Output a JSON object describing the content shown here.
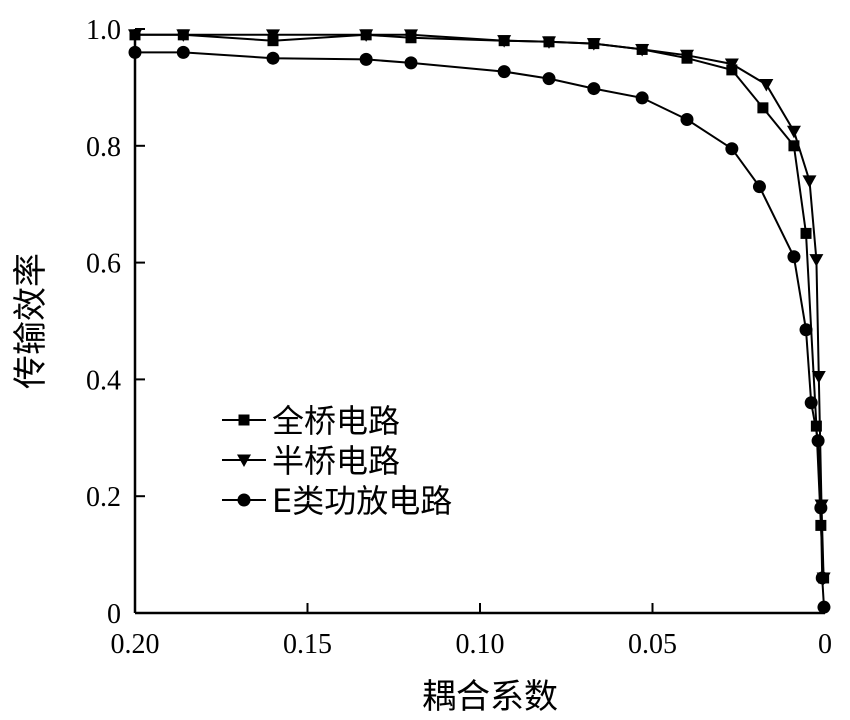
{
  "chart_data": {
    "type": "line",
    "title": "",
    "xlabel": "耦合系数",
    "ylabel": "传输效率",
    "xlim": [
      0.2,
      0
    ],
    "ylim": [
      0,
      1.0
    ],
    "x_reversed": true,
    "grid": false,
    "legend_placement": "lower-left",
    "xticks": [
      "0.20",
      "0.15",
      "0.10",
      "0.05",
      "0"
    ],
    "xtick_values": [
      0.2,
      0.15,
      0.1,
      0.05,
      0
    ],
    "yticks": [
      "0",
      "0.2",
      "0.4",
      "0.6",
      "0.8",
      "1.0"
    ],
    "ytick_values": [
      0,
      0.2,
      0.4,
      0.6,
      0.8,
      1.0
    ],
    "series": [
      {
        "name": "全桥电路",
        "marker": "square",
        "x": [
          0.2,
          0.186,
          0.16,
          0.133,
          0.12,
          0.093,
          0.08,
          0.067,
          0.053,
          0.04,
          0.027,
          0.018,
          0.009,
          0.0055,
          0.0025,
          0.0012,
          0.0004
        ],
        "y": [
          0.99,
          0.99,
          0.98,
          0.99,
          0.985,
          0.98,
          0.978,
          0.975,
          0.965,
          0.95,
          0.93,
          0.865,
          0.8,
          0.65,
          0.32,
          0.15,
          0.06
        ]
      },
      {
        "name": "半桥电路",
        "marker": "triangle-down",
        "x": [
          0.2,
          0.186,
          0.16,
          0.133,
          0.12,
          0.093,
          0.08,
          0.067,
          0.053,
          0.04,
          0.027,
          0.017,
          0.009,
          0.0045,
          0.0025,
          0.0018,
          0.001,
          0.0004
        ],
        "y": [
          0.99,
          0.99,
          0.99,
          0.99,
          0.99,
          0.98,
          0.978,
          0.975,
          0.965,
          0.955,
          0.94,
          0.905,
          0.825,
          0.74,
          0.605,
          0.405,
          0.185,
          0.06
        ]
      },
      {
        "name": "E类功放电路",
        "marker": "circle",
        "x": [
          0.2,
          0.186,
          0.16,
          0.133,
          0.12,
          0.093,
          0.08,
          0.067,
          0.053,
          0.04,
          0.027,
          0.019,
          0.009,
          0.0055,
          0.004,
          0.002,
          0.0012,
          0.0008,
          0.0003
        ],
        "y": [
          0.96,
          0.96,
          0.95,
          0.948,
          0.942,
          0.927,
          0.915,
          0.898,
          0.882,
          0.845,
          0.795,
          0.73,
          0.61,
          0.485,
          0.36,
          0.295,
          0.18,
          0.06,
          0.01
        ]
      }
    ]
  }
}
